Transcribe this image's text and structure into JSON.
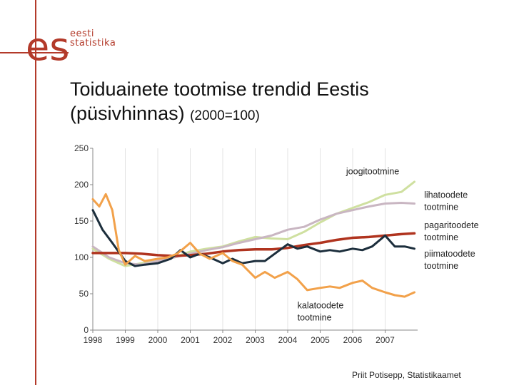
{
  "logo": {
    "mark": "es",
    "word1": "eesti",
    "word2": "statistika"
  },
  "title": {
    "main": "Toiduainete tootmise trendid Eestis",
    "line2": "(püsivhinnas)",
    "base": "(2000=100)"
  },
  "footer": {
    "credit": "Priit Potisepp, Statistikaamet"
  },
  "chart_data": {
    "type": "line",
    "ylim": [
      0,
      250
    ],
    "xlim": [
      1998,
      2008
    ],
    "yticks": [
      "0",
      "50",
      "100",
      "150",
      "200",
      "250"
    ],
    "xticks": [
      "1998",
      "1999",
      "2000",
      "2001",
      "2002",
      "2003",
      "2004",
      "2005",
      "2006",
      "2007"
    ],
    "grid": "vertical",
    "series": [
      {
        "name": "joogitootmine",
        "color": "#cfe0a0",
        "x": [
          1998,
          1998.5,
          1999,
          1999.5,
          2000,
          2000.5,
          2001,
          2001.5,
          2002,
          2002.5,
          2003,
          2003.5,
          2004,
          2004.5,
          2005,
          2005.5,
          2006,
          2006.5,
          2007,
          2007.5,
          2007.9
        ],
        "values": [
          112,
          98,
          88,
          92,
          95,
          100,
          108,
          112,
          115,
          122,
          128,
          126,
          125,
          135,
          148,
          160,
          168,
          176,
          186,
          190,
          204
        ]
      },
      {
        "name": "lihatoodete tootmine",
        "color": "#c9b6c2",
        "x": [
          1998,
          1998.5,
          1999,
          1999.5,
          2000,
          2000.5,
          2001,
          2001.5,
          2002,
          2002.5,
          2003,
          2003.5,
          2004,
          2004.5,
          2005,
          2005.5,
          2006,
          2006.5,
          2007,
          2007.5,
          2007.9
        ],
        "values": [
          115,
          100,
          92,
          90,
          95,
          100,
          105,
          110,
          114,
          120,
          125,
          130,
          138,
          142,
          152,
          160,
          165,
          170,
          174,
          175,
          174
        ]
      },
      {
        "name": "pagaritoodete tootmine",
        "color": "#b0341f",
        "x": [
          1998,
          1998.5,
          1999,
          1999.5,
          2000,
          2000.5,
          2001,
          2001.5,
          2002,
          2002.5,
          2003,
          2003.5,
          2004,
          2004.5,
          2005,
          2005.5,
          2006,
          2006.5,
          2007,
          2007.5,
          2007.9
        ],
        "values": [
          106,
          106,
          106,
          105,
          103,
          102,
          103,
          105,
          108,
          110,
          111,
          111,
          113,
          117,
          120,
          124,
          127,
          128,
          130,
          132,
          133
        ]
      },
      {
        "name": "piimatoodete tootmine",
        "color": "#1c2e3c",
        "x": [
          1998,
          1998.3,
          1998.6,
          1999,
          1999.3,
          1999.6,
          2000,
          2000.4,
          2000.7,
          2001,
          2001.3,
          2001.6,
          2002,
          2002.3,
          2002.6,
          2003,
          2003.3,
          2003.6,
          2004,
          2004.3,
          2004.6,
          2005,
          2005.3,
          2005.6,
          2006,
          2006.3,
          2006.6,
          2007,
          2007.3,
          2007.6,
          2007.9
        ],
        "values": [
          165,
          138,
          120,
          95,
          88,
          90,
          92,
          98,
          110,
          100,
          105,
          100,
          92,
          98,
          92,
          95,
          95,
          105,
          118,
          112,
          115,
          108,
          110,
          108,
          112,
          110,
          115,
          130,
          115,
          115,
          112
        ]
      },
      {
        "name": "kalatoodete tootmine",
        "color": "#f2a14a",
        "x": [
          1998,
          1998.2,
          1998.4,
          1998.6,
          1998.8,
          1999,
          1999.3,
          1999.6,
          2000,
          2000.3,
          2000.6,
          2001,
          2001.3,
          2001.6,
          2002,
          2002.3,
          2002.6,
          2003,
          2003.3,
          2003.6,
          2004,
          2004.3,
          2004.6,
          2005,
          2005.3,
          2005.6,
          2006,
          2006.3,
          2006.6,
          2007,
          2007.3,
          2007.6,
          2007.9
        ],
        "values": [
          180,
          170,
          187,
          165,
          110,
          90,
          102,
          95,
          98,
          100,
          105,
          120,
          105,
          98,
          106,
          95,
          90,
          72,
          80,
          72,
          80,
          70,
          55,
          58,
          60,
          58,
          65,
          68,
          58,
          52,
          48,
          46,
          52
        ]
      }
    ],
    "labels": [
      {
        "series": 0,
        "lines": [
          "joogitootmine"
        ],
        "anchor": [
          2005.8,
          214
        ]
      },
      {
        "series": 1,
        "lines": [
          "lihatoodete",
          "tootmine"
        ],
        "anchor": [
          2008.2,
          182
        ]
      },
      {
        "series": 2,
        "lines": [
          "pagaritoodete",
          "tootmine"
        ],
        "anchor": [
          2008.2,
          140
        ]
      },
      {
        "series": 3,
        "lines": [
          "piimatoodete",
          "tootmine"
        ],
        "anchor": [
          2008.2,
          101
        ]
      },
      {
        "series": 4,
        "lines": [
          "kalatoodete",
          "tootmine"
        ],
        "anchor": [
          2004.3,
          30
        ]
      }
    ]
  }
}
